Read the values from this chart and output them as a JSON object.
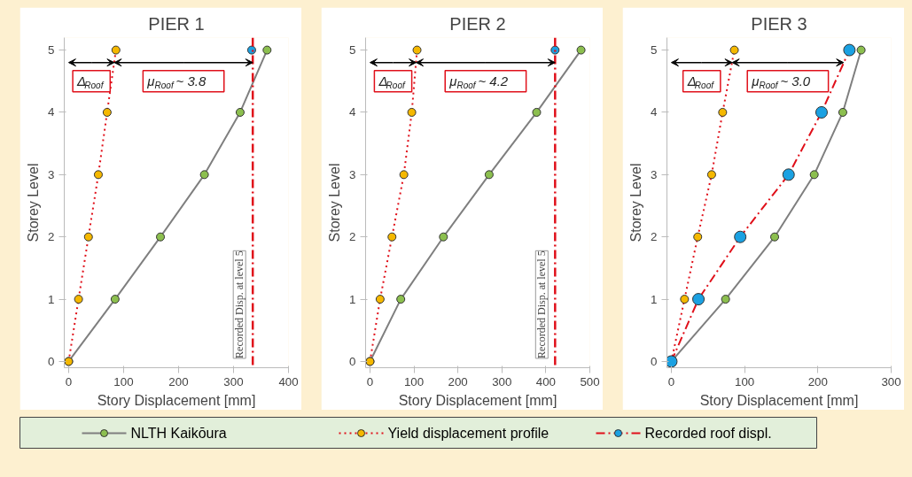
{
  "chart_data": [
    {
      "type": "line",
      "title": "PIER 1",
      "xlabel": "Story Displacement [mm]",
      "ylabel": "Storey Level",
      "xlim": [
        -8,
        400
      ],
      "ylim": [
        -0.1,
        5.2
      ],
      "xticks": [
        0,
        100,
        200,
        300,
        400
      ],
      "yticks": [
        0,
        1,
        2,
        3,
        4,
        5
      ],
      "grid": false,
      "legend": "bottom",
      "marker": "circle",
      "series": [
        {
          "name": "NLTH Kaikōura",
          "color": "#8cbf4f",
          "line_style": "solid",
          "x": [
            0,
            84.5,
            167,
            247,
            312,
            361
          ],
          "values": [
            0,
            1,
            2,
            3,
            4,
            5
          ]
        },
        {
          "name": "Yield displacement profile",
          "color": "#f5b800",
          "line_style": "dotted",
          "x": [
            0,
            18,
            36,
            54,
            70,
            86
          ],
          "values": [
            0,
            1,
            2,
            3,
            4,
            5
          ]
        },
        {
          "name": "Recorded roof displ.",
          "color": "#1ba1e2",
          "line_style": "dashed",
          "x": [
            333
          ],
          "values": [
            5
          ]
        }
      ],
      "ref_lines": [
        {
          "axis": "x",
          "value": 335,
          "label": "Recorded Disp. at level 5",
          "color": "#e0101a",
          "line_style": "dashed"
        }
      ],
      "annotations": [
        {
          "text": "Δ$_{Roof}$",
          "x": 83,
          "y": 4.8
        },
        {
          "text": "μ$_{Roof}$ ~ 3.8",
          "x": 335,
          "y": 4.8
        }
      ]
    },
    {
      "type": "line",
      "title": "PIER 2",
      "xlabel": "Story Displacement [mm]",
      "ylabel": "Storey Level",
      "xlim": [
        -10,
        500
      ],
      "ylim": [
        -0.1,
        5.2
      ],
      "xticks": [
        0,
        100,
        200,
        300,
        400,
        500
      ],
      "yticks": [
        0,
        1,
        2,
        3,
        4,
        5
      ],
      "grid": false,
      "marker": "circle",
      "series": [
        {
          "color": "#8cbf4f",
          "line_style": "solid",
          "x": [
            0,
            70,
            167,
            271,
            379,
            480
          ],
          "values": [
            0,
            1,
            2,
            3,
            4,
            5
          ]
        },
        {
          "color": "#f5b800",
          "line_style": "dotted",
          "x": [
            0,
            23,
            50,
            77,
            95,
            107
          ],
          "values": [
            0,
            1,
            2,
            3,
            4,
            5
          ]
        },
        {
          "color": "#1ba1e2",
          "line_style": "dashed",
          "x": [
            421
          ],
          "values": [
            5
          ]
        }
      ],
      "ref_lines": [
        {
          "axis": "x",
          "value": 421,
          "label": "Recorded Disp. at level 5",
          "color": "#e0101a",
          "line_style": "dashed"
        }
      ],
      "annotations": [
        {
          "text": "Δ$_{Roof}$",
          "x": 105,
          "y": 4.8
        },
        {
          "text": "μ$_{Roof}$ ~ 4.2",
          "x": 421,
          "y": 4.8
        }
      ]
    },
    {
      "type": "line",
      "title": "PIER 3",
      "xlabel": "Story Displacement [mm]",
      "ylabel": "Storey Level",
      "xlim": [
        -6,
        300
      ],
      "ylim": [
        -0.1,
        5.2
      ],
      "xticks": [
        0,
        100,
        200,
        300
      ],
      "yticks": [
        0,
        1,
        2,
        3,
        4,
        5
      ],
      "grid": false,
      "marker": "circle",
      "series": [
        {
          "color": "#8cbf4f",
          "line_style": "solid",
          "x": [
            0,
            74,
            141,
            195,
            234,
            259
          ],
          "values": [
            0,
            1,
            2,
            3,
            4,
            5
          ]
        },
        {
          "color": "#f5b800",
          "line_style": "dotted",
          "x": [
            0,
            18,
            36,
            55,
            70,
            86
          ],
          "values": [
            0,
            1,
            2,
            3,
            4,
            5
          ]
        },
        {
          "color": "#1ba1e2",
          "line_style": "dashed",
          "x": [
            0,
            37,
            94,
            160,
            205,
            243
          ],
          "values": [
            0,
            1,
            2,
            3,
            4,
            5
          ]
        }
      ],
      "annotations": [
        {
          "text": "Δ$_{Roof}$",
          "x": 83,
          "y": 4.8
        },
        {
          "text": "μ$_{Roof}$ ~ 3.0",
          "x": 235,
          "y": 4.8
        }
      ]
    }
  ]
}
